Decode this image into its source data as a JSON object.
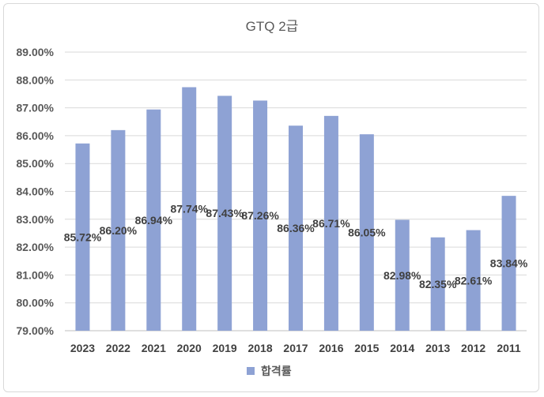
{
  "chart_data": {
    "type": "bar",
    "title": "GTQ 2급",
    "categories": [
      "2023",
      "2022",
      "2021",
      "2020",
      "2019",
      "2018",
      "2017",
      "2016",
      "2015",
      "2014",
      "2013",
      "2012",
      "2011"
    ],
    "series": [
      {
        "name": "합격률",
        "values": [
          85.72,
          86.2,
          86.94,
          87.74,
          87.43,
          87.26,
          86.36,
          86.71,
          86.05,
          82.98,
          82.35,
          82.61,
          83.84
        ],
        "labels": [
          "85.72%",
          "86.20%",
          "86.94%",
          "87.74%",
          "87.43%",
          "87.26%",
          "86.36%",
          "86.71%",
          "86.05%",
          "82.98%",
          "82.35%",
          "82.61%",
          "83.84%"
        ]
      }
    ],
    "ylim": [
      79,
      89
    ],
    "yticks": [
      79,
      80,
      81,
      82,
      83,
      84,
      85,
      86,
      87,
      88,
      89
    ],
    "ytick_labels": [
      "79.00%",
      "80.00%",
      "81.00%",
      "82.00%",
      "83.00%",
      "84.00%",
      "85.00%",
      "86.00%",
      "87.00%",
      "88.00%",
      "89.00%"
    ],
    "xlabel": "",
    "ylabel": "",
    "grid": true,
    "legend_position": "bottom",
    "colors": {
      "bar": "#8ea2d4",
      "grid": "#d9d9d9",
      "axis": "#bfbfbf"
    }
  }
}
